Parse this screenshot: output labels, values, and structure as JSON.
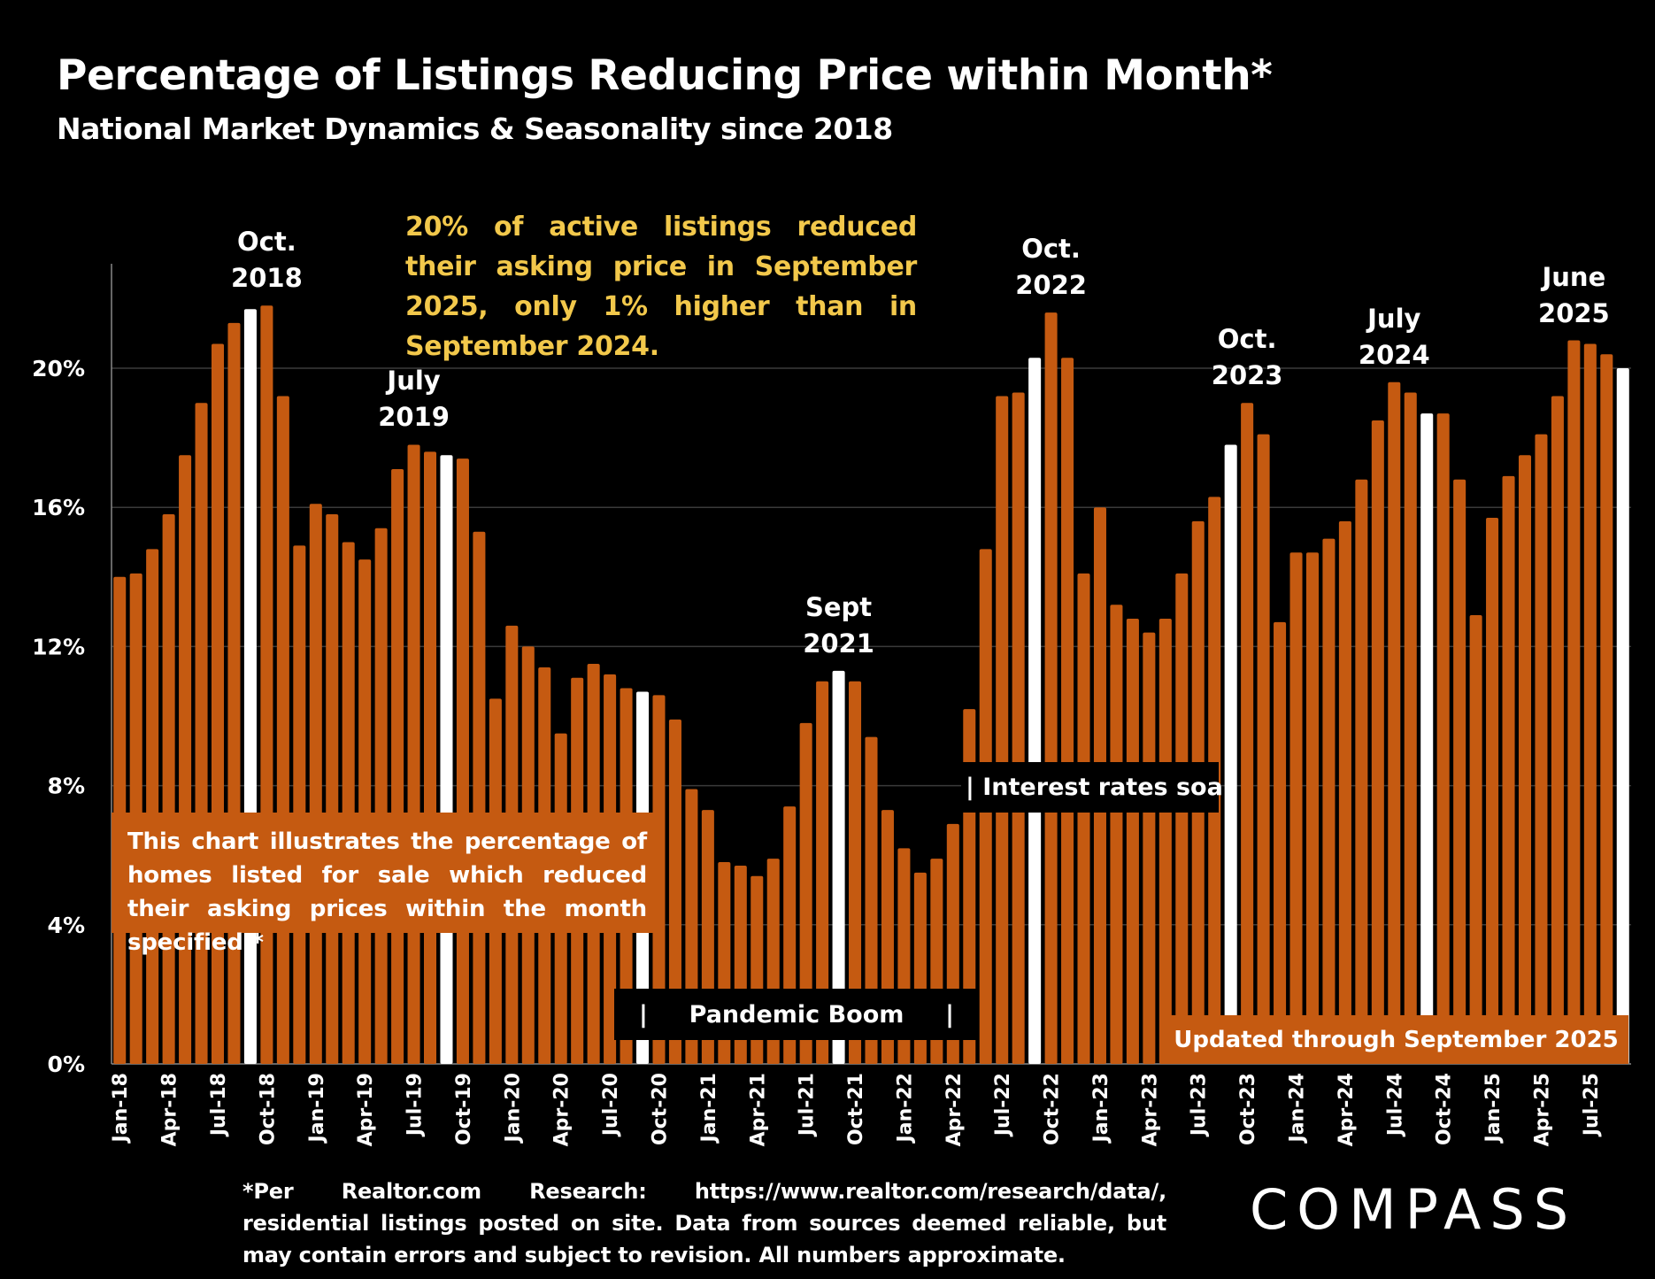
{
  "header": {
    "title": "Percentage of Listings Reducing Price within Month*",
    "subtitle": "National Market Dynamics & Seasonality since 2018"
  },
  "callout": "20% of active listings reduced their asking price in September 2025, only 1% higher than in September 2024.",
  "explainer": "This chart illustrates the percentage of homes listed for sale which reduced their asking prices within the month specified.*",
  "periods": {
    "pandemic_bar_left": "|",
    "pandemic": "Pandemic Boom",
    "pandemic_bar_right": "|",
    "rates": "| Interest rates soar"
  },
  "updated": "Updated through September 2025",
  "footnote": "*Per Realtor.com Research: https://www.realtor.com/research/data/, residential listings posted on site. Data from sources deemed reliable, but may contain errors and subject to revision. All numbers approximate.",
  "logo": "COMPASS",
  "colors": {
    "bar": "#c55a11",
    "highlight": "#ffffff",
    "callout": "#f2c84b",
    "background": "#000000",
    "grid": "#3a3a3a"
  },
  "chart_data": {
    "type": "bar",
    "ylim": [
      0,
      23
    ],
    "y_ticks": [
      "0%",
      "4%",
      "8%",
      "12%",
      "16%",
      "20%"
    ],
    "y_tick_values": [
      0,
      4,
      8,
      12,
      16,
      20
    ],
    "grid": true,
    "x_tick_every": 3,
    "categories": [
      "Jan-18",
      "Feb-18",
      "Mar-18",
      "Apr-18",
      "May-18",
      "Jun-18",
      "Jul-18",
      "Aug-18",
      "Sep-18",
      "Oct-18",
      "Nov-18",
      "Dec-18",
      "Jan-19",
      "Feb-19",
      "Mar-19",
      "Apr-19",
      "May-19",
      "Jun-19",
      "Jul-19",
      "Aug-19",
      "Sep-19",
      "Oct-19",
      "Nov-19",
      "Dec-19",
      "Jan-20",
      "Feb-20",
      "Mar-20",
      "Apr-20",
      "May-20",
      "Jun-20",
      "Jul-20",
      "Aug-20",
      "Sep-20",
      "Oct-20",
      "Nov-20",
      "Dec-20",
      "Jan-21",
      "Feb-21",
      "Mar-21",
      "Apr-21",
      "May-21",
      "Jun-21",
      "Jul-21",
      "Aug-21",
      "Sep-21",
      "Oct-21",
      "Nov-21",
      "Dec-21",
      "Jan-22",
      "Feb-22",
      "Mar-22",
      "Apr-22",
      "May-22",
      "Jun-22",
      "Jul-22",
      "Aug-22",
      "Sep-22",
      "Oct-22",
      "Nov-22",
      "Dec-22",
      "Jan-23",
      "Feb-23",
      "Mar-23",
      "Apr-23",
      "May-23",
      "Jun-23",
      "Jul-23",
      "Aug-23",
      "Sep-23",
      "Oct-23",
      "Nov-23",
      "Dec-23",
      "Jan-24",
      "Feb-24",
      "Mar-24",
      "Apr-24",
      "May-24",
      "Jun-24",
      "Jul-24",
      "Aug-24",
      "Sep-24",
      "Oct-24",
      "Nov-24",
      "Dec-24",
      "Jan-25",
      "Feb-25",
      "Mar-25",
      "Apr-25",
      "May-25",
      "Jun-25",
      "Jul-25",
      "Aug-25",
      "Sep-25"
    ],
    "values": [
      14.0,
      14.1,
      14.8,
      15.8,
      17.5,
      19.0,
      20.7,
      21.3,
      21.7,
      21.8,
      19.2,
      14.9,
      16.1,
      15.8,
      15.0,
      14.5,
      15.4,
      17.1,
      17.8,
      17.6,
      17.5,
      17.4,
      15.3,
      10.5,
      12.6,
      12.0,
      11.4,
      9.5,
      11.1,
      11.5,
      11.2,
      10.8,
      10.7,
      10.6,
      9.9,
      7.9,
      7.3,
      5.8,
      5.7,
      5.4,
      5.9,
      7.4,
      9.8,
      11.0,
      11.3,
      11.0,
      9.4,
      7.3,
      6.2,
      5.5,
      5.9,
      6.9,
      10.2,
      14.8,
      19.2,
      19.3,
      20.3,
      21.6,
      20.3,
      14.1,
      16.0,
      13.2,
      12.8,
      12.4,
      12.8,
      14.1,
      15.6,
      16.3,
      17.8,
      19.0,
      18.1,
      12.7,
      14.7,
      14.7,
      15.1,
      15.6,
      16.8,
      18.5,
      19.6,
      19.3,
      18.7,
      18.7,
      16.8,
      12.9,
      15.7,
      16.9,
      17.5,
      18.1,
      19.2,
      20.8,
      20.7,
      20.4,
      20.0
    ],
    "highlighted": [
      "Sep-18",
      "Sep-19",
      "Sep-20",
      "Sep-21",
      "Sep-22",
      "Sep-23",
      "Sep-24",
      "Sep-25"
    ],
    "annotations": [
      {
        "month": "Oct-18",
        "line1": "Oct.",
        "line2": "2018"
      },
      {
        "month": "Jul-19",
        "line1": "July",
        "line2": "2019"
      },
      {
        "month": "Sep-21",
        "line1": "Sept",
        "line2": "2021"
      },
      {
        "month": "Oct-22",
        "line1": "Oct.",
        "line2": "2022"
      },
      {
        "month": "Oct-23",
        "line1": "Oct.",
        "line2": "2023"
      },
      {
        "month": "Jul-24",
        "line1": "July",
        "line2": "2024"
      },
      {
        "month": "Jun-25",
        "line1": "June",
        "line2": "2025"
      }
    ]
  }
}
